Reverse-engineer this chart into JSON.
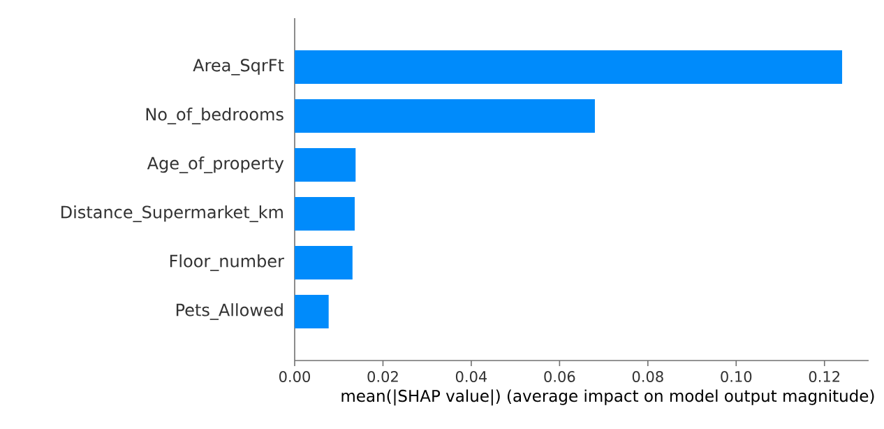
{
  "chart_data": {
    "type": "bar",
    "orientation": "horizontal",
    "xlabel": "mean(|SHAP value|) (average impact on model output magnitude)",
    "categories": [
      "Area_SqrFt",
      "No_of_bedrooms",
      "Age_of_property",
      "Distance_Supermarket_km",
      "Floor_number",
      "Pets_Allowed"
    ],
    "values": [
      0.124,
      0.068,
      0.0138,
      0.0136,
      0.0131,
      0.0077
    ],
    "color": "#008bfb",
    "xlim": [
      0,
      0.13
    ],
    "xticks": [
      {
        "value": 0,
        "label": "0.00"
      },
      {
        "value": 0.02,
        "label": "0.02"
      },
      {
        "value": 0.04,
        "label": "0.04"
      },
      {
        "value": 0.06,
        "label": "0.06"
      },
      {
        "value": 0.08,
        "label": "0.08"
      },
      {
        "value": 0.1,
        "label": "0.10"
      },
      {
        "value": 0.12,
        "label": "0.12"
      }
    ],
    "grid": false
  }
}
